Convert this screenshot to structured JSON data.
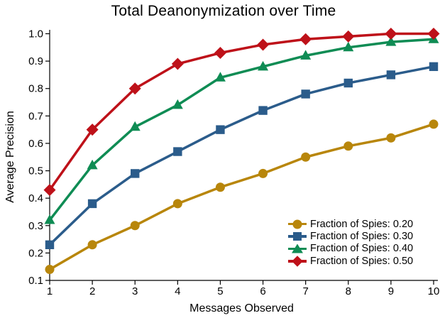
{
  "page": {
    "background": "#FFFFFF",
    "text_color": "#000000",
    "axis_color": "#000000"
  },
  "chart_data": {
    "type": "line",
    "title": "Total Deanonymization over Time",
    "xlabel": "Messages Observed",
    "ylabel": "Average Precision",
    "x": [
      1,
      2,
      3,
      4,
      5,
      6,
      7,
      8,
      9,
      10
    ],
    "x_ticks": [
      "1",
      "2",
      "3",
      "4",
      "5",
      "6",
      "7",
      "8",
      "9",
      "10"
    ],
    "y_ticks": [
      "0.1",
      "0.2",
      "0.3",
      "0.4",
      "0.5",
      "0.6",
      "0.7",
      "0.8",
      "0.9",
      "1.0"
    ],
    "xlim": [
      1,
      10
    ],
    "ylim": [
      0.1,
      1.0
    ],
    "grid": false,
    "legend_position": "lower right",
    "series": [
      {
        "name": "Fraction of Spies: 0.20",
        "color": "#B8860B",
        "marker": "circle",
        "values": [
          0.14,
          0.23,
          0.3,
          0.38,
          0.44,
          0.49,
          0.55,
          0.59,
          0.62,
          0.67
        ]
      },
      {
        "name": "Fraction of Spies: 0.30",
        "color": "#2B5C8B",
        "marker": "square",
        "values": [
          0.23,
          0.38,
          0.49,
          0.57,
          0.65,
          0.72,
          0.78,
          0.82,
          0.85,
          0.88
        ]
      },
      {
        "name": "Fraction of Spies: 0.40",
        "color": "#0F8C54",
        "marker": "triangle",
        "values": [
          0.32,
          0.52,
          0.66,
          0.74,
          0.84,
          0.88,
          0.92,
          0.95,
          0.97,
          0.98
        ]
      },
      {
        "name": "Fraction of Spies: 0.50",
        "color": "#BE1119",
        "marker": "diamond",
        "values": [
          0.43,
          0.65,
          0.8,
          0.89,
          0.93,
          0.96,
          0.98,
          0.99,
          1.0,
          1.0
        ]
      }
    ]
  }
}
